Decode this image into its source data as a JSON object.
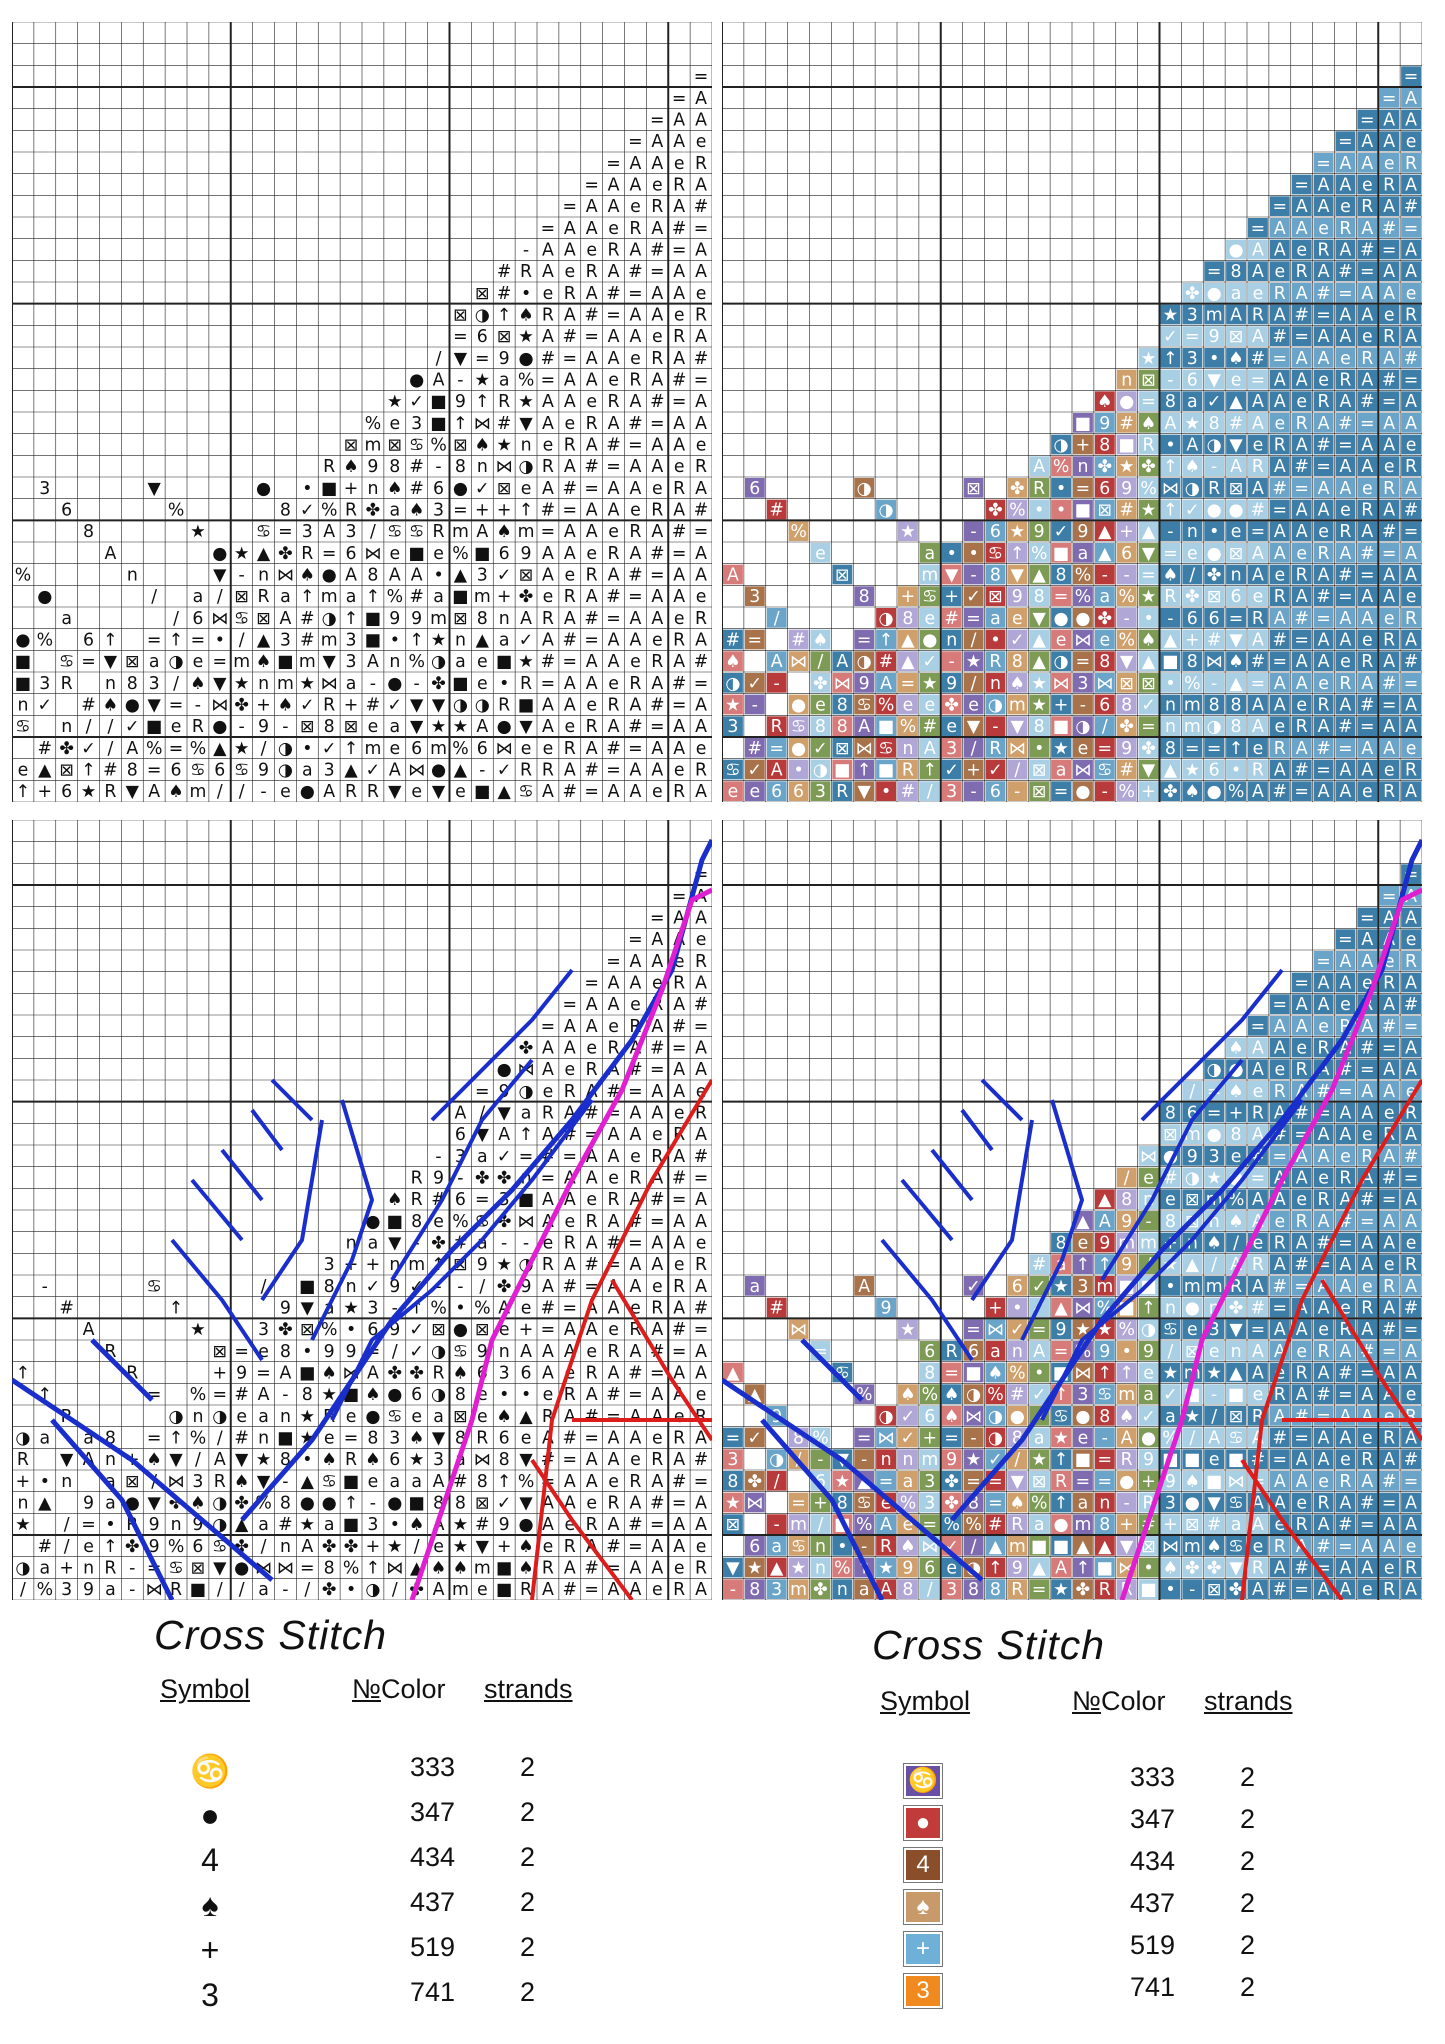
{
  "panels": [
    {
      "name": "symbol-chart-top-left",
      "style": "symbols"
    },
    {
      "name": "color-chart-top-right",
      "style": "color"
    },
    {
      "name": "backstitch-symbol-chart-bottom-left",
      "style": "symbols-backstitch"
    },
    {
      "name": "backstitch-color-chart-bottom-right",
      "style": "color-backstitch"
    }
  ],
  "legend_left": {
    "title": "Cross Stitch",
    "headers": {
      "symbol": "Symbol",
      "no": "№",
      "color": "Color",
      "strands": "strands"
    },
    "rows": [
      {
        "symbol": "♋",
        "number": "333",
        "strands": "2"
      },
      {
        "symbol": "●",
        "number": "347",
        "strands": "2"
      },
      {
        "symbol": "4",
        "number": "434",
        "strands": "2"
      },
      {
        "symbol": "♠",
        "number": "437",
        "strands": "2"
      },
      {
        "symbol": "+",
        "number": "519",
        "strands": "2"
      },
      {
        "symbol": "3",
        "number": "741",
        "strands": "2"
      }
    ]
  },
  "legend_right": {
    "title": "Cross Stitch",
    "headers": {
      "symbol": "Symbol",
      "no": "№",
      "color": "Color",
      "strands": "strands"
    },
    "rows": [
      {
        "symbol": "♋",
        "number": "333",
        "strands": "2",
        "color": "#6a4fa6"
      },
      {
        "symbol": "●",
        "number": "347",
        "strands": "2",
        "color": "#c23b3b"
      },
      {
        "symbol": "4",
        "number": "434",
        "strands": "2",
        "color": "#8a4e2b"
      },
      {
        "symbol": "♠",
        "number": "437",
        "strands": "2",
        "color": "#c89a6a"
      },
      {
        "symbol": "+",
        "number": "519",
        "strands": "2",
        "color": "#6fb0d8"
      },
      {
        "symbol": "3",
        "number": "741",
        "strands": "2",
        "color": "#f08a1e"
      }
    ]
  },
  "palette": {
    "blue_dark": "#3d7ea8",
    "blue_mid": "#6aa4c9",
    "blue_light": "#a8cfe3",
    "brown": "#a8724a",
    "tan": "#d0a06c",
    "rose": "#d77a7a",
    "red": "#b83a3a",
    "green": "#7d9b55",
    "purple": "#7f6bb0",
    "lavender": "#b1a7d6",
    "backstitch_blue": "#1a2ecc",
    "backstitch_magenta": "#e020d0",
    "backstitch_red": "#dd1c1c"
  }
}
